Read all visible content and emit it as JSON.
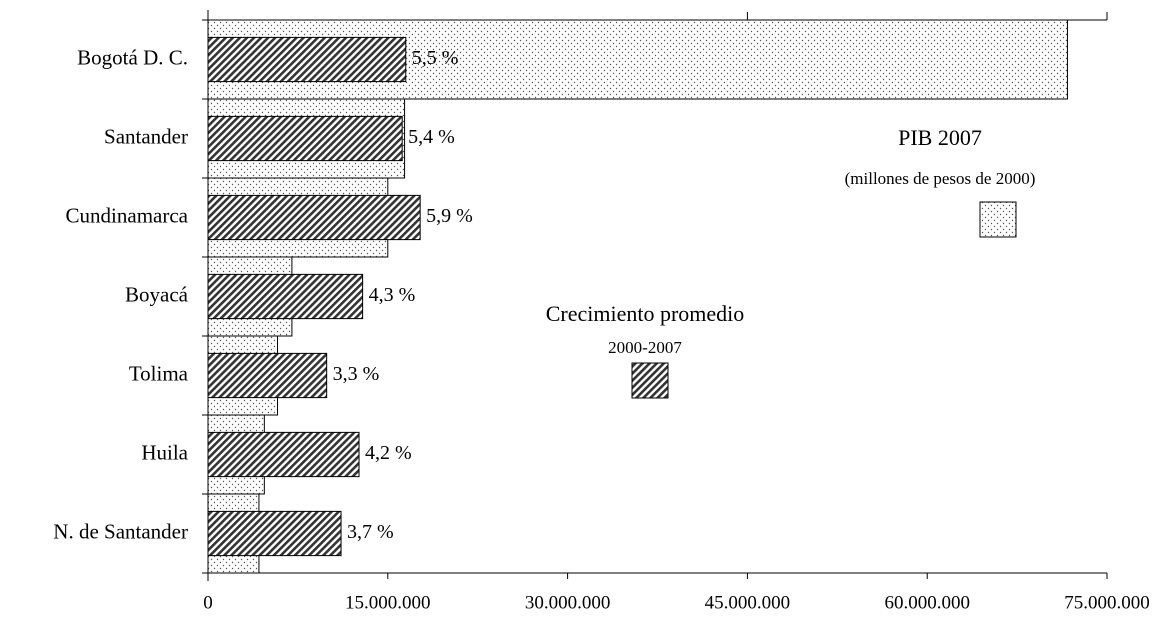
{
  "chart_data": {
    "type": "bar",
    "orientation": "horizontal",
    "categories": [
      "Bogotá D. C.",
      "Santander",
      "Cundinamarca",
      "Boyacá",
      "Tolima",
      "Huila",
      "N. de Santander"
    ],
    "series": [
      {
        "name": "PIB 2007",
        "note": "(millones de pesos de 2000)",
        "color": "#000000",
        "values": [
          71700000,
          16400000,
          15000000,
          7000000,
          5800000,
          4700000,
          4250000
        ]
      },
      {
        "name": "Crecimiento promedio",
        "note": "2000-2007",
        "color": "#000000",
        "axis": "x2",
        "values": [
          5.5,
          5.4,
          5.9,
          4.3,
          3.3,
          4.2,
          3.7
        ],
        "value_labels": [
          "5,5 %",
          "5,4 %",
          "5,9 %",
          "4,3 %",
          "3,3 %",
          "4,2 %",
          "3,7 %"
        ]
      }
    ],
    "xlim": [
      0,
      75000000
    ],
    "xticks": [
      0,
      {
        "value": 15000000,
        "label": "15.000.000"
      },
      {
        "value": 30000000,
        "label": "30.000.000"
      },
      {
        "value": 45000000,
        "label": "45.000.000"
      },
      {
        "value": 60000000,
        "label": "60.000.000"
      },
      {
        "value": 75000000,
        "label": "75.000.000"
      }
    ],
    "x2lim": [
      0,
      25
    ],
    "x2ticks": [
      0,
      15,
      25
    ]
  }
}
